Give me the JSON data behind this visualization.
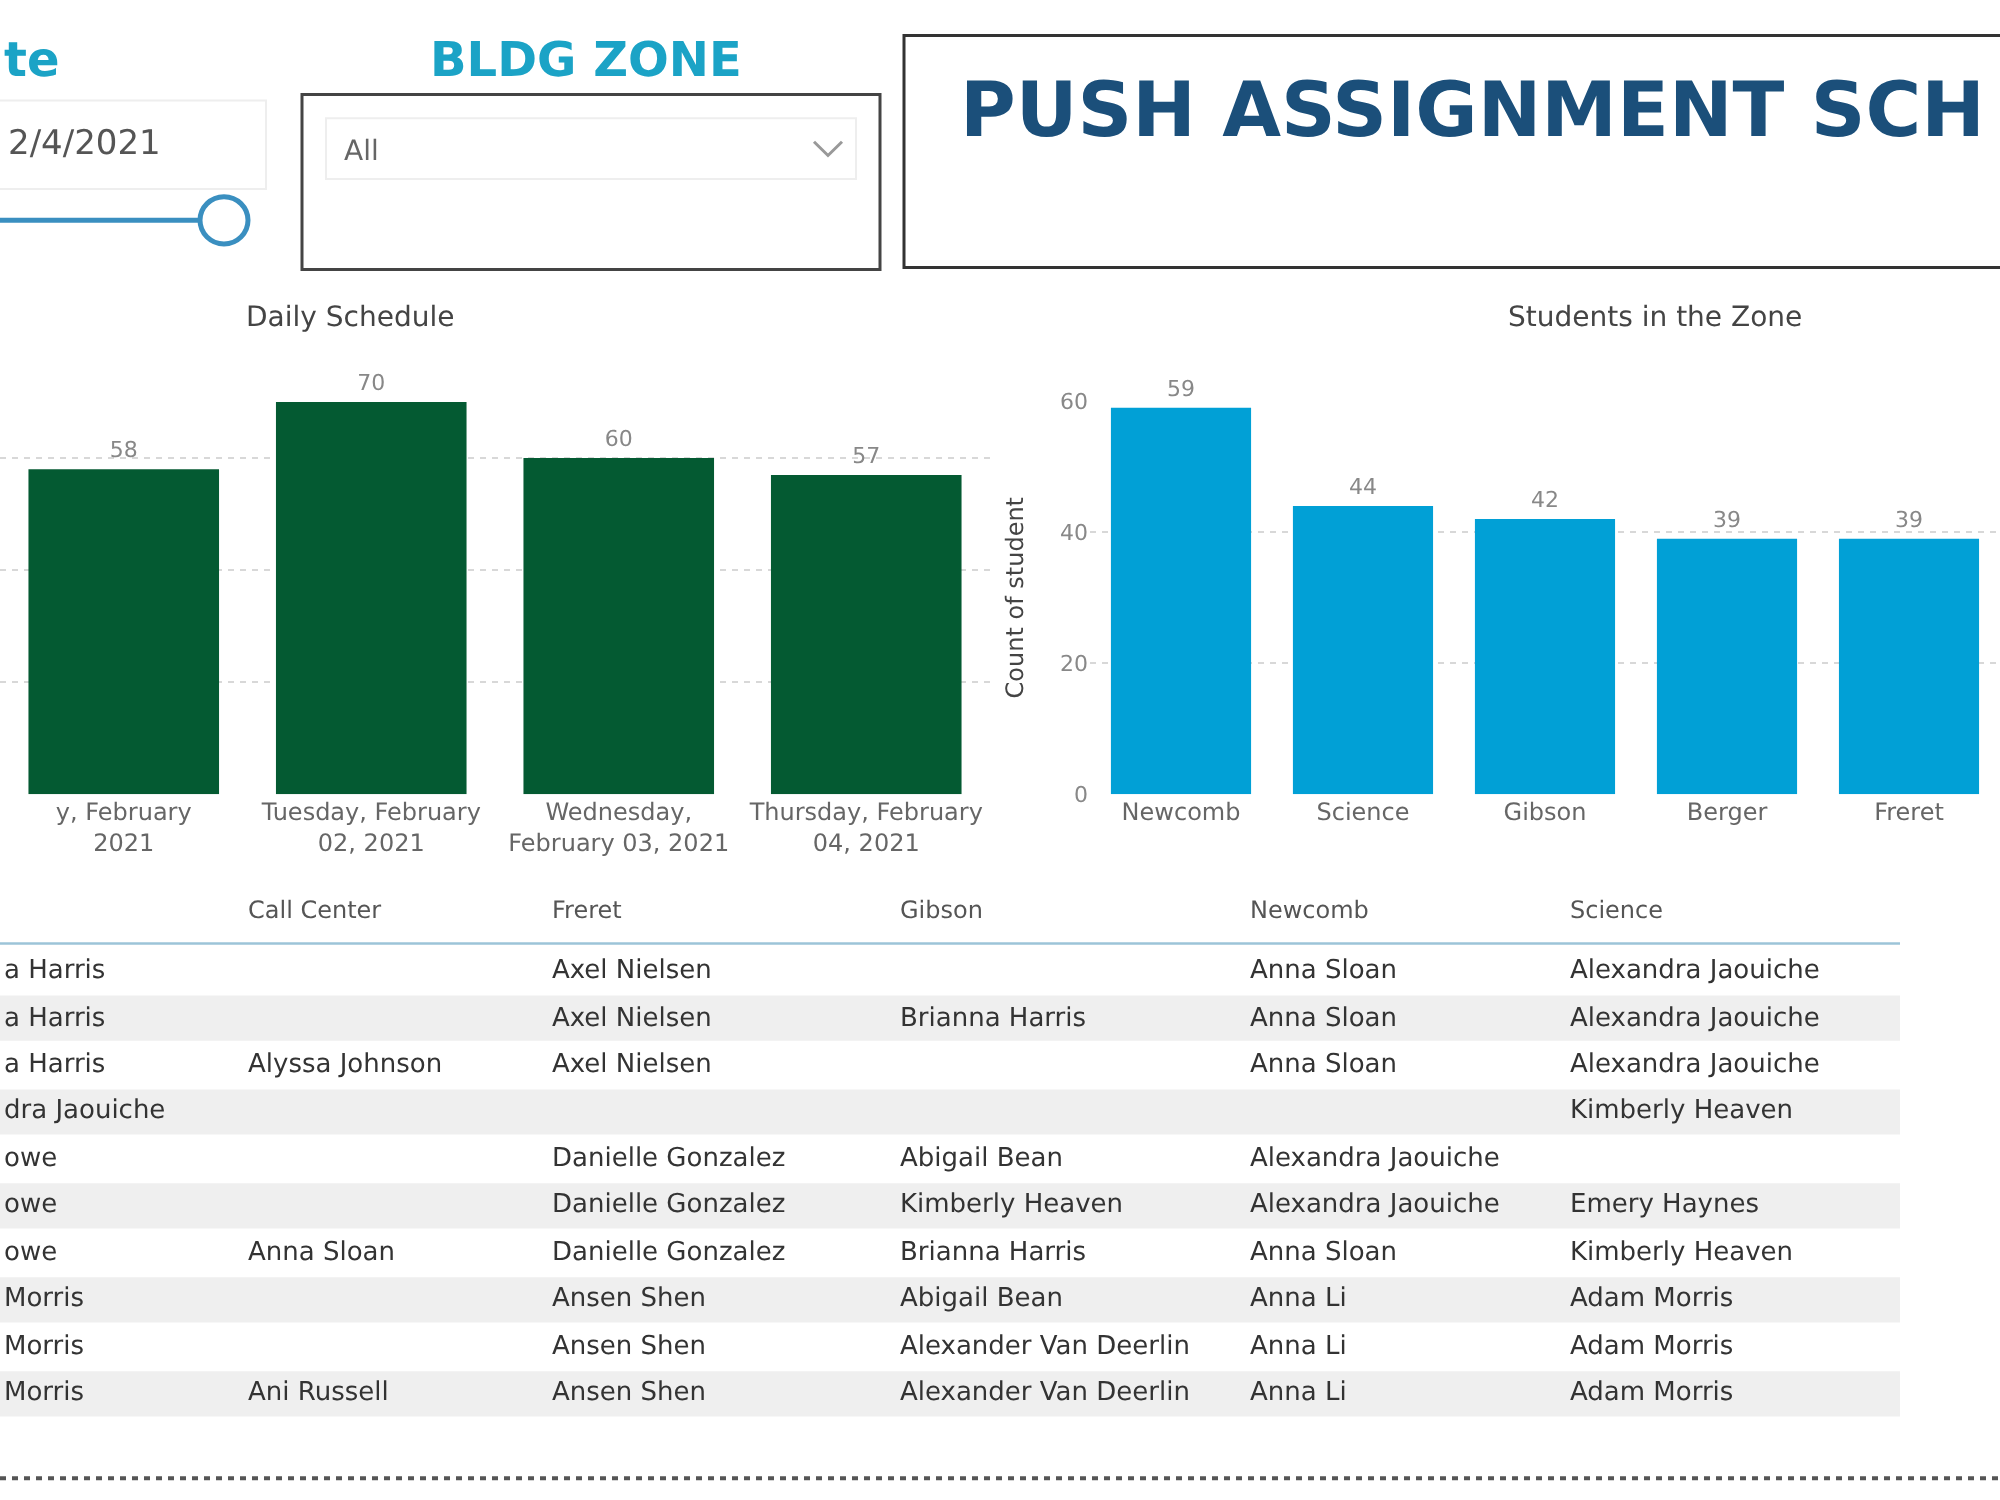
{
  "chart_data": [
    {
      "type": "other",
      "title": "PUSH ASSIGNMENT SCH",
      "annotations": [
        "te",
        "2/4/2021",
        "BLDG ZONE",
        "All"
      ]
    },
    {
      "type": "bar",
      "title": "Daily Schedule",
      "categories": [
        "y, February\n2021",
        "Tuesday, February\n02, 2021",
        "Wednesday,\nFebruary 03, 2021",
        "Thursday, February\n04, 2021"
      ],
      "values": [
        58,
        70,
        60,
        57
      ],
      "color": "#045a32",
      "data_labels": true,
      "grid": "y",
      "tick_labels": "x"
    },
    {
      "type": "bar",
      "title": "Students in the Zone",
      "ylabel": "Count of student",
      "categories": [
        "Newcomb",
        "Science",
        "Gibson",
        "Berger",
        "Freret"
      ],
      "values": [
        59,
        44,
        42,
        39,
        39
      ],
      "color": "#01a0d6",
      "data_labels": true,
      "ylim": [
        0,
        60
      ],
      "yticks": [
        0,
        20,
        40,
        60
      ],
      "grid": "y"
    },
    {
      "type": "other",
      "categories": [
        null,
        "Call Center",
        "Freret",
        "Gibson",
        "Newcomb",
        "Science"
      ],
      "cells": [
        [
          "a Harris",
          null,
          "Axel Nielsen",
          null,
          "Anna Sloan",
          "Alexandra Jaouiche"
        ],
        [
          "a Harris",
          null,
          "Axel Nielsen",
          "Brianna Harris",
          "Anna Sloan",
          "Alexandra Jaouiche"
        ],
        [
          "a Harris",
          "Alyssa Johnson",
          "Axel Nielsen",
          null,
          "Anna Sloan",
          "Alexandra Jaouiche"
        ],
        [
          "dra Jaouiche",
          null,
          null,
          null,
          null,
          "Kimberly Heaven"
        ],
        [
          "owe",
          null,
          "Danielle Gonzalez",
          "Abigail Bean",
          "Alexandra Jaouiche",
          null
        ],
        [
          "owe",
          null,
          "Danielle Gonzalez",
          "Kimberly Heaven",
          "Alexandra Jaouiche",
          "Emery Haynes"
        ],
        [
          "owe",
          "Anna Sloan",
          "Danielle Gonzalez",
          "Brianna Harris",
          "Anna Sloan",
          "Kimberly Heaven"
        ],
        [
          "Morris",
          null,
          "Ansen Shen",
          "Abigail Bean",
          "Anna Li",
          "Adam Morris"
        ],
        [
          "Morris",
          null,
          "Ansen Shen",
          "Alexander Van Deerlin",
          "Anna Li",
          "Adam Morris"
        ],
        [
          "Morris",
          "Ani Russell",
          "Ansen Shen",
          "Alexander Van Deerlin",
          "Anna Li",
          "Adam Morris"
        ]
      ]
    }
  ]
}
